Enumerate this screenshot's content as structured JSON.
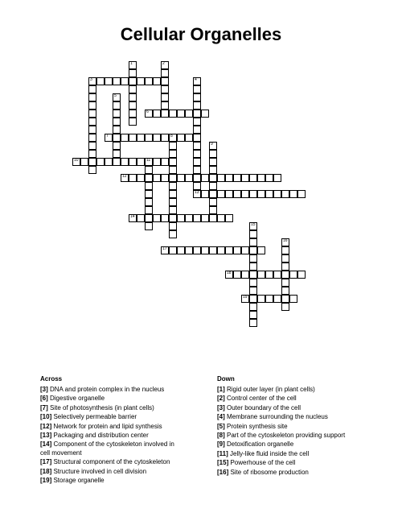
{
  "title": "Cellular Organelles",
  "grid": {
    "cell_size": 10,
    "width_cells": 38,
    "height_cells": 36,
    "cell_border_color": "#000000",
    "cell_bg_color": "#ffffff",
    "words": [
      {
        "num": 1,
        "row": 0,
        "col": 10,
        "dir": "down",
        "len": 8
      },
      {
        "num": 2,
        "row": 0,
        "col": 14,
        "dir": "down",
        "len": 7
      },
      {
        "num": 3,
        "row": 2,
        "col": 5,
        "dir": "across",
        "len": 9
      },
      {
        "num": 3,
        "row": 2,
        "col": 5,
        "dir": "down",
        "len": 12
      },
      {
        "num": 4,
        "row": 2,
        "col": 18,
        "dir": "down",
        "len": 15
      },
      {
        "num": 5,
        "row": 4,
        "col": 8,
        "dir": "down",
        "len": 8
      },
      {
        "num": 6,
        "row": 6,
        "col": 12,
        "dir": "across",
        "len": 8
      },
      {
        "num": 7,
        "row": 9,
        "col": 7,
        "dir": "across",
        "len": 11
      },
      {
        "num": 8,
        "row": 9,
        "col": 15,
        "dir": "down",
        "len": 13
      },
      {
        "num": 9,
        "row": 10,
        "col": 20,
        "dir": "down",
        "len": 10
      },
      {
        "num": 10,
        "row": 12,
        "col": 3,
        "dir": "across",
        "len": 12
      },
      {
        "num": 11,
        "row": 12,
        "col": 12,
        "dir": "down",
        "len": 9
      },
      {
        "num": 12,
        "row": 14,
        "col": 9,
        "dir": "across",
        "len": 20
      },
      {
        "num": 13,
        "row": 16,
        "col": 18,
        "dir": "across",
        "len": 14
      },
      {
        "num": 14,
        "row": 19,
        "col": 10,
        "dir": "across",
        "len": 13
      },
      {
        "num": 15,
        "row": 20,
        "col": 25,
        "dir": "down",
        "len": 13
      },
      {
        "num": 16,
        "row": 22,
        "col": 29,
        "dir": "down",
        "len": 9
      },
      {
        "num": 17,
        "row": 23,
        "col": 14,
        "dir": "across",
        "len": 13
      },
      {
        "num": 18,
        "row": 26,
        "col": 22,
        "dir": "across",
        "len": 10
      },
      {
        "num": 19,
        "row": 29,
        "col": 24,
        "dir": "across",
        "len": 7
      }
    ]
  },
  "clues": {
    "across_heading": "Across",
    "down_heading": "Down",
    "across": [
      {
        "num": "[3]",
        "text": "DNA and protein complex in the nucleus"
      },
      {
        "num": "[6]",
        "text": "Digestive organelle"
      },
      {
        "num": "[7]",
        "text": "Site of photosynthesis (in plant cells)"
      },
      {
        "num": "[10]",
        "text": "Selectively permeable barrier"
      },
      {
        "num": "[12]",
        "text": "Network for protein and lipid synthesis"
      },
      {
        "num": "[13]",
        "text": "Packaging and distribution center"
      },
      {
        "num": "[14]",
        "text": "Component of the cytoskeleton involved in cell movement"
      },
      {
        "num": "[17]",
        "text": "Structural component of the cytoskeleton"
      },
      {
        "num": "[18]",
        "text": "Structure involved in cell division"
      },
      {
        "num": "[19]",
        "text": "Storage organelle"
      }
    ],
    "down": [
      {
        "num": "[1]",
        "text": "Rigid outer layer (in plant cells)"
      },
      {
        "num": "[2]",
        "text": "Control center of the cell"
      },
      {
        "num": "[3]",
        "text": "Outer boundary of the cell"
      },
      {
        "num": "[4]",
        "text": "Membrane surrounding the nucleus"
      },
      {
        "num": "[5]",
        "text": "Protein synthesis site"
      },
      {
        "num": "[8]",
        "text": "Part of the cytoskeleton providing support"
      },
      {
        "num": "[9]",
        "text": "Detoxification organelle"
      },
      {
        "num": "[11]",
        "text": "Jelly-like fluid inside the cell"
      },
      {
        "num": "[15]",
        "text": "Powerhouse of the cell"
      },
      {
        "num": "[16]",
        "text": "Site of ribosome production"
      }
    ]
  }
}
